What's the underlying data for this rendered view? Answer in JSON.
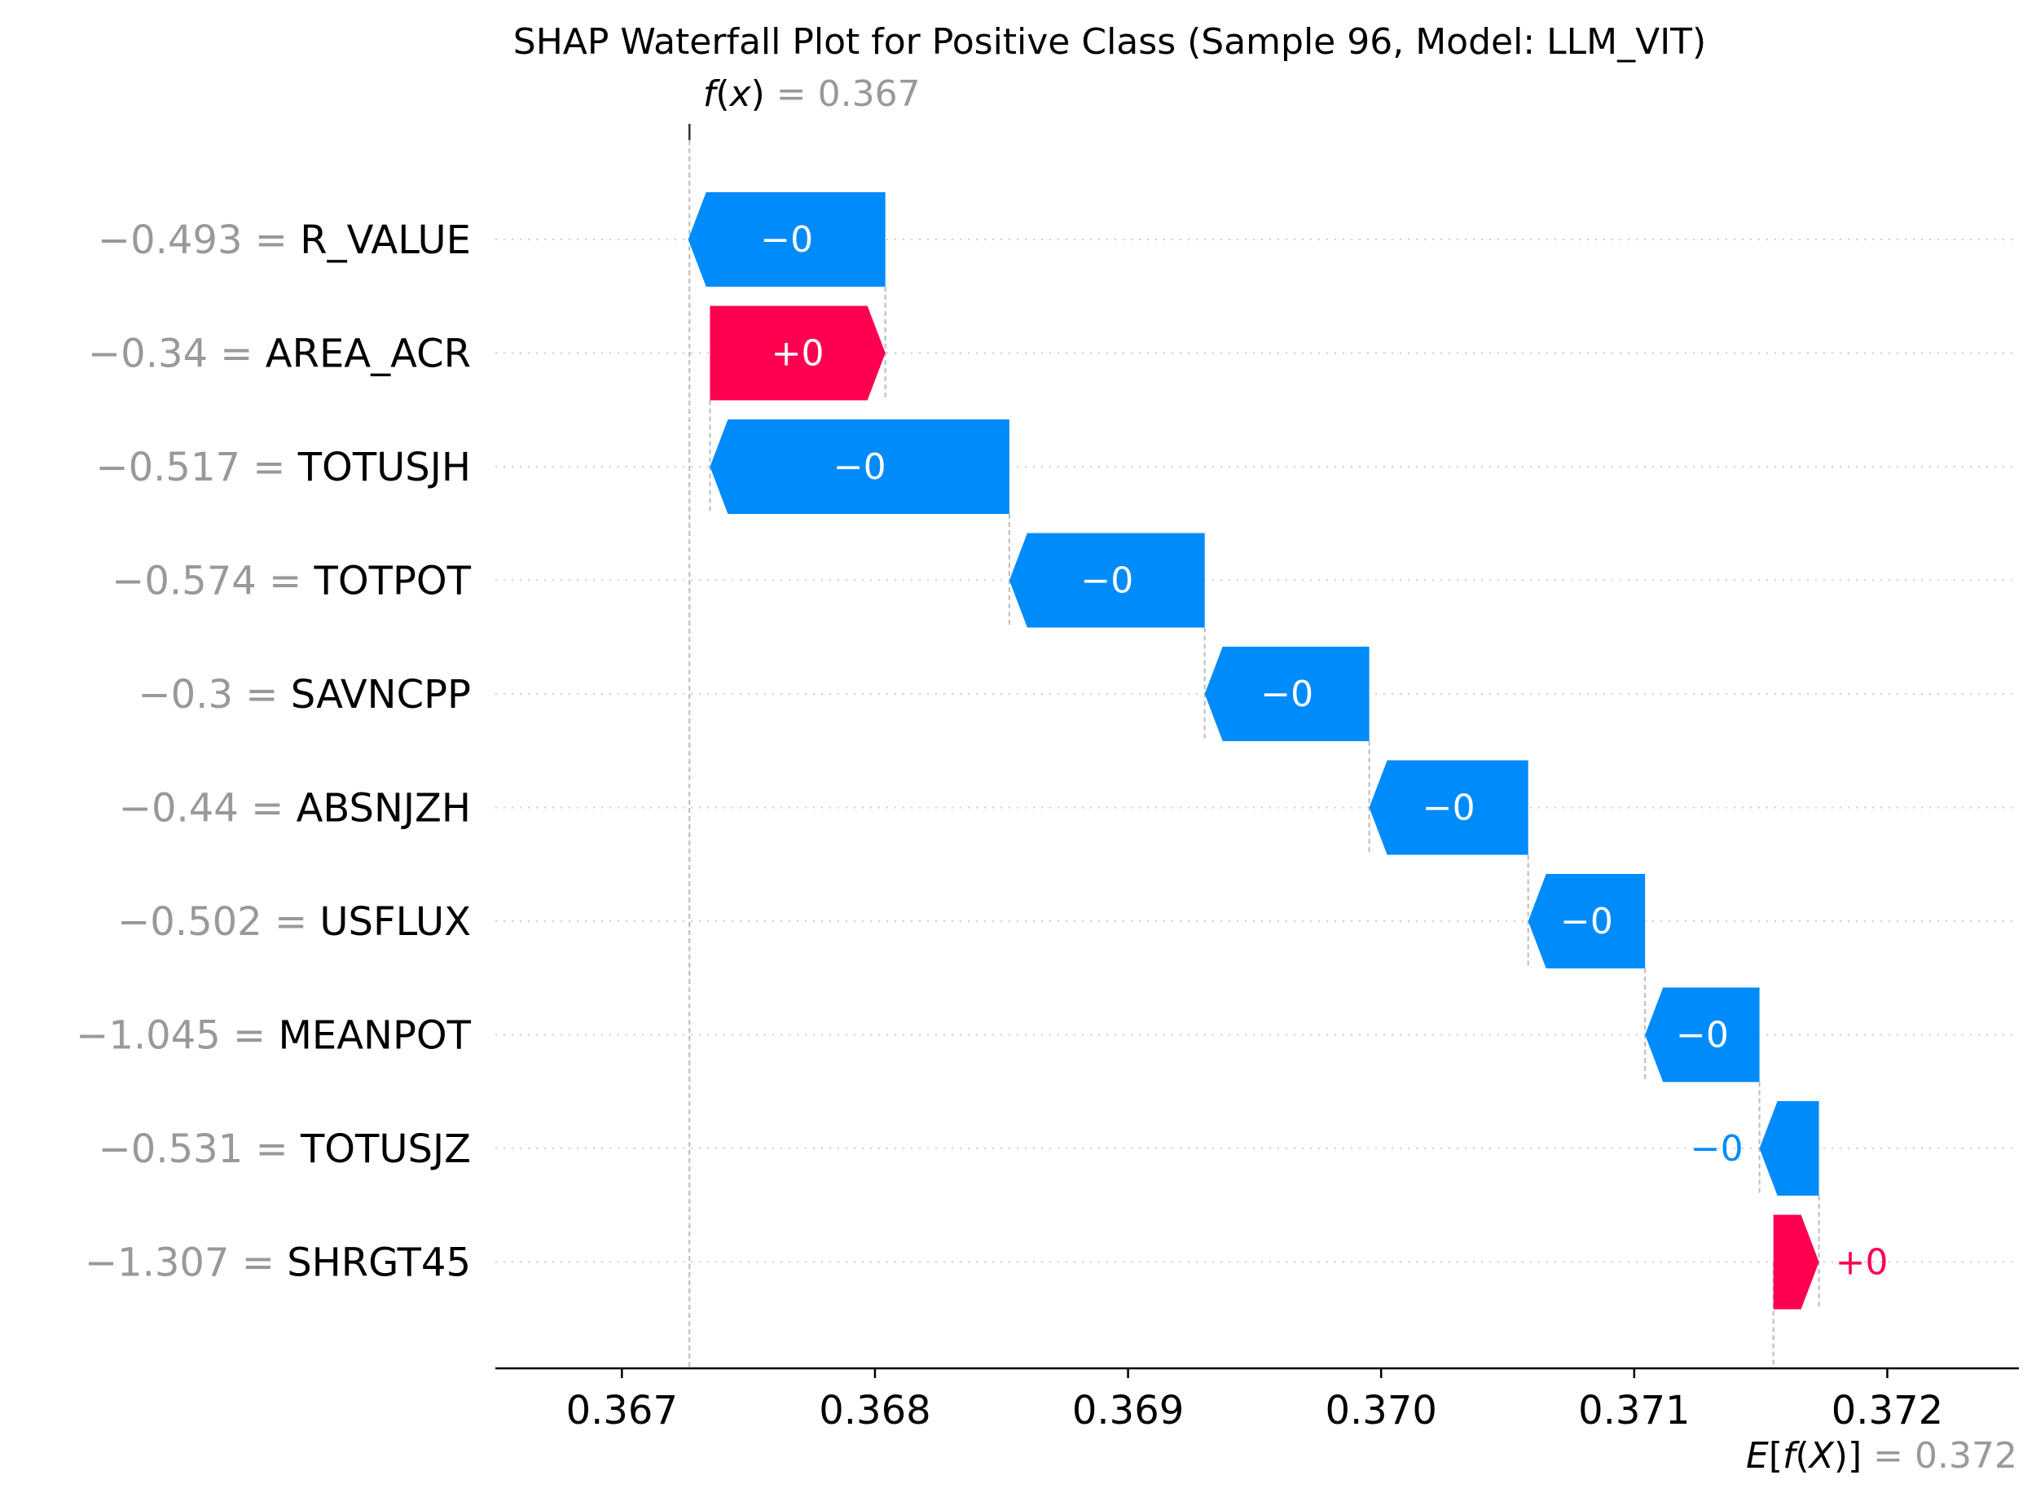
{
  "chart_data": {
    "type": "waterfall",
    "title": "SHAP Waterfall Plot for Positive Class (Sample 96, Model: LLM_VIT)",
    "fx": {
      "label_fn": "f",
      "label_arg": "x",
      "eq": " = ",
      "value": 0.367267,
      "value_text": "0.367"
    },
    "efx": {
      "label_pre": "E",
      "label_fn": "f",
      "label_arg": "X",
      "eq": " = ",
      "value": 0.37155,
      "value_text": "0.372"
    },
    "features": [
      {
        "name": "R_VALUE",
        "feature_value": "−0.493",
        "shap": -0.000779,
        "label": "−0"
      },
      {
        "name": "AREA_ACR",
        "feature_value": "−0.34",
        "shap": 0.000693,
        "label": "+0"
      },
      {
        "name": "TOTUSJH",
        "feature_value": "−0.517",
        "shap": -0.001183,
        "label": "−0"
      },
      {
        "name": "TOTPOT",
        "feature_value": "−0.574",
        "shap": -0.000772,
        "label": "−0"
      },
      {
        "name": "SAVNCPP",
        "feature_value": "−0.3",
        "shap": -0.00065,
        "label": "−0"
      },
      {
        "name": "ABSNJZH",
        "feature_value": "−0.44",
        "shap": -0.000628,
        "label": "−0"
      },
      {
        "name": "USFLUX",
        "feature_value": "−0.502",
        "shap": -0.000462,
        "label": "−0"
      },
      {
        "name": "MEANPOT",
        "feature_value": "−1.045",
        "shap": -0.000452,
        "label": "−0"
      },
      {
        "name": "TOTUSJZ",
        "feature_value": "−0.531",
        "shap": -0.000235,
        "label": "−0"
      },
      {
        "name": "SHRGT45",
        "feature_value": "−1.307",
        "shap": 0.00018,
        "label": "+0"
      }
    ],
    "xticks": [
      0.367,
      0.368,
      0.369,
      0.37,
      0.371,
      0.372
    ],
    "xtick_labels": [
      "0.367",
      "0.368",
      "0.369",
      "0.370",
      "0.371",
      "0.372"
    ],
    "xlim": [
      0.3665,
      0.37252
    ],
    "colors": {
      "positive": "#ff0051",
      "negative": "#008bfb",
      "value_gray": "#999999",
      "guide": "#bbbbbb",
      "grid": "#cccccc"
    }
  }
}
